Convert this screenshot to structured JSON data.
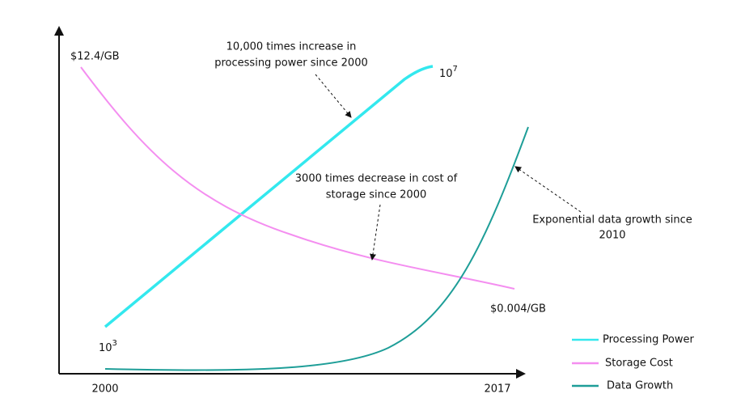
{
  "axes": {
    "x_start": "2000",
    "x_end": "2017"
  },
  "series": [
    {
      "name": "Processing Power",
      "color": "#33e8ee",
      "start_label": {
        "base": "10",
        "exponent": "3"
      },
      "end_label": {
        "base": "10",
        "exponent": "7"
      }
    },
    {
      "name": "Storage Cost",
      "color": "#f48ef0",
      "start_label": "$12.4/GB",
      "end_label": "$0.004/GB"
    },
    {
      "name": "Data Growth",
      "color": "#1e9e98"
    }
  ],
  "annotations": [
    {
      "lines": [
        "10,000 times increase in",
        "processing power since 2000"
      ]
    },
    {
      "lines": [
        "3000 times decrease in cost of",
        "storage since 2000"
      ]
    },
    {
      "lines": [
        "Exponential data growth since",
        "2010"
      ]
    }
  ]
}
